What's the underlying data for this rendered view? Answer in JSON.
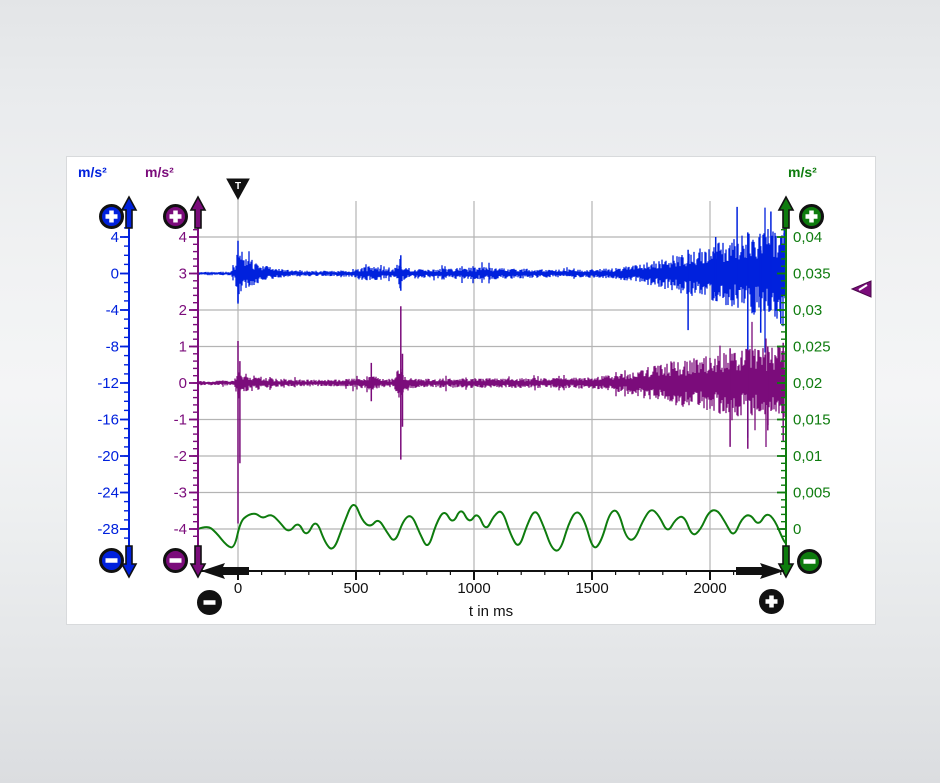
{
  "units": {
    "blue": "m/s²",
    "purple": "m/s²",
    "green": "m/s²"
  },
  "markers": {
    "trigger_label": "T",
    "trigger_time_ms": 0,
    "purple_level_marker": "left-triangle"
  },
  "controls": {
    "zoom_in_glyph": "+",
    "zoom_out_glyph": "−",
    "blue_axis": [
      "zoom-in",
      "scroll-up",
      "scroll-down",
      "zoom-out"
    ],
    "purple_axis": [
      "zoom-in",
      "scroll-up",
      "scroll-down",
      "zoom-out"
    ],
    "green_axis": [
      "zoom-in",
      "scroll-up",
      "scroll-down",
      "zoom-out"
    ],
    "time_axis": [
      "scroll-left",
      "scroll-right",
      "zoom-out",
      "zoom-in"
    ]
  },
  "colors": {
    "blue": "#0021dd",
    "purple": "#7b0c7b",
    "green": "#0e7c0e",
    "black": "#111111",
    "grid": "#b4b4b4",
    "panel": "#ffffff"
  },
  "chart_data": {
    "type": "line",
    "title": "",
    "x_axis": {
      "label": "t in ms",
      "tick_labels": [
        "0",
        "500",
        "1000",
        "1500",
        "2000"
      ],
      "tick_values": [
        0,
        500,
        1000,
        1500,
        2000
      ],
      "minor_step_ms": 100,
      "range": [
        -170,
        2322
      ]
    },
    "axes": {
      "blue": {
        "unit": "m/s²",
        "color": "#0021dd",
        "side": "left",
        "tick_labels": [
          "4",
          "0",
          "-4",
          "-8",
          "-12",
          "-16",
          "-20",
          "-24",
          "-28"
        ],
        "tick_values": [
          4,
          0,
          -4,
          -8,
          -12,
          -16,
          -20,
          -24,
          -28
        ]
      },
      "purple": {
        "unit": "m/s²",
        "color": "#7b0c7b",
        "side": "left",
        "tick_labels": [
          "4",
          "3",
          "2",
          "1",
          "0",
          "-1",
          "-2",
          "-3",
          "-4"
        ],
        "tick_values": [
          4,
          3,
          2,
          1,
          0,
          -1,
          -2,
          -3,
          -4
        ]
      },
      "green": {
        "unit": "m/s²",
        "color": "#0e7c0e",
        "side": "right",
        "tick_labels": [
          "0,04",
          "0,035",
          "0,03",
          "0,025",
          "0,02",
          "0,015",
          "0,01",
          "0,005",
          "0"
        ],
        "tick_values": [
          0.04,
          0.035,
          0.03,
          0.025,
          0.02,
          0.015,
          0.01,
          0.005,
          0
        ]
      }
    },
    "grid": {
      "color": "#b4b4b4",
      "horizontal_at_every_major": true,
      "vertical_at_every_major": true
    },
    "series": {
      "blue": {
        "name": "acceleration-trace-blue",
        "axis": "blue",
        "baseline": 0,
        "envelope": [
          [
            -170,
            0.18
          ],
          [
            -30,
            0.2
          ],
          [
            -12,
            0.9
          ],
          [
            0,
            3.3
          ],
          [
            25,
            2.0
          ],
          [
            60,
            1.5
          ],
          [
            110,
            0.9
          ],
          [
            170,
            0.5
          ],
          [
            250,
            0.32
          ],
          [
            430,
            0.3
          ],
          [
            480,
            0.45
          ],
          [
            540,
            0.85
          ],
          [
            580,
            0.75
          ],
          [
            620,
            0.55
          ],
          [
            655,
            0.5
          ],
          [
            678,
            1.1
          ],
          [
            690,
            1.9
          ],
          [
            700,
            0.8
          ],
          [
            730,
            0.45
          ],
          [
            820,
            0.5
          ],
          [
            950,
            0.65
          ],
          [
            1050,
            0.7
          ],
          [
            1150,
            0.6
          ],
          [
            1300,
            0.45
          ],
          [
            1450,
            0.42
          ],
          [
            1600,
            0.6
          ],
          [
            1700,
            1.0
          ],
          [
            1800,
            1.7
          ],
          [
            1900,
            2.4
          ],
          [
            2000,
            3.1
          ],
          [
            2100,
            3.9
          ],
          [
            2200,
            4.7
          ],
          [
            2330,
            5.3
          ]
        ],
        "spikes": [
          [
            0,
            -3.3,
            3.6
          ],
          [
            690,
            -1.9,
            2.0
          ],
          [
            1907,
            -6.2,
            2.6
          ],
          [
            2024,
            -2.5,
            4.0
          ],
          [
            2115,
            -2.5,
            7.3
          ],
          [
            2160,
            -18.0,
            4.5
          ],
          [
            2215,
            -6.5,
            3.0
          ],
          [
            2258,
            -4.0,
            6.8
          ],
          [
            2300,
            -5.5,
            4.0
          ],
          [
            2315,
            -2.0,
            7.2
          ]
        ]
      },
      "purple": {
        "name": "acceleration-trace-purple",
        "axis": "purple",
        "baseline": 0,
        "envelope": [
          [
            -170,
            0.06
          ],
          [
            -15,
            0.07
          ],
          [
            0,
            0.45
          ],
          [
            20,
            0.3
          ],
          [
            60,
            0.22
          ],
          [
            120,
            0.14
          ],
          [
            200,
            0.1
          ],
          [
            400,
            0.09
          ],
          [
            480,
            0.12
          ],
          [
            540,
            0.16
          ],
          [
            575,
            0.2
          ],
          [
            610,
            0.12
          ],
          [
            660,
            0.12
          ],
          [
            685,
            0.5
          ],
          [
            700,
            0.25
          ],
          [
            760,
            0.12
          ],
          [
            900,
            0.13
          ],
          [
            1100,
            0.14
          ],
          [
            1300,
            0.13
          ],
          [
            1500,
            0.16
          ],
          [
            1620,
            0.25
          ],
          [
            1720,
            0.42
          ],
          [
            1820,
            0.58
          ],
          [
            1920,
            0.7
          ],
          [
            2020,
            0.8
          ],
          [
            2120,
            0.92
          ],
          [
            2220,
            1.0
          ],
          [
            2330,
            1.05
          ]
        ],
        "spikes": [
          [
            0,
            -3.85,
            1.15
          ],
          [
            8,
            -2.2,
            0.6
          ],
          [
            565,
            -0.5,
            0.55
          ],
          [
            690,
            -2.1,
            2.1
          ],
          [
            697,
            -1.2,
            0.8
          ],
          [
            2085,
            -1.75,
            0.95
          ],
          [
            2160,
            -1.8,
            0.9
          ],
          [
            2245,
            -1.3,
            1.0
          ],
          [
            2310,
            -1.6,
            1.1
          ]
        ]
      },
      "green": {
        "name": "acceleration-trace-green",
        "axis": "green",
        "points": [
          [
            -170,
            0.0
          ],
          [
            -130,
            0.0005
          ],
          [
            -95,
            -0.0004
          ],
          [
            -45,
            -0.0024
          ],
          [
            -15,
            -0.0026
          ],
          [
            10,
            0.001
          ],
          [
            40,
            0.0019
          ],
          [
            75,
            0.0022
          ],
          [
            105,
            0.0014
          ],
          [
            140,
            0.0021
          ],
          [
            175,
            0.001
          ],
          [
            215,
            -0.0006
          ],
          [
            255,
            0.0011
          ],
          [
            290,
            -0.0012
          ],
          [
            330,
            0.0015
          ],
          [
            370,
            -0.002
          ],
          [
            405,
            -0.0031
          ],
          [
            445,
            0.0005
          ],
          [
            490,
            0.0041
          ],
          [
            525,
            0.0012
          ],
          [
            560,
            0.0002
          ],
          [
            595,
            0.0015
          ],
          [
            630,
            -0.0004
          ],
          [
            665,
            -0.002
          ],
          [
            700,
            0.0012
          ],
          [
            735,
            0.0021
          ],
          [
            770,
            -0.0006
          ],
          [
            805,
            -0.0029
          ],
          [
            840,
            0.0008
          ],
          [
            875,
            0.0027
          ],
          [
            910,
            0.0006
          ],
          [
            945,
            0.003
          ],
          [
            980,
            0.0007
          ],
          [
            1015,
            0.0024
          ],
          [
            1050,
            -0.0004
          ],
          [
            1085,
            0.0019
          ],
          [
            1120,
            0.0027
          ],
          [
            1155,
            -0.0008
          ],
          [
            1190,
            -0.0028
          ],
          [
            1225,
            0.0006
          ],
          [
            1260,
            0.0029
          ],
          [
            1295,
            0.0004
          ],
          [
            1330,
            -0.0028
          ],
          [
            1365,
            -0.0031
          ],
          [
            1400,
            0.0007
          ],
          [
            1435,
            0.0027
          ],
          [
            1470,
            0.0011
          ],
          [
            1505,
            -0.003
          ],
          [
            1540,
            -0.0017
          ],
          [
            1575,
            0.0023
          ],
          [
            1610,
            0.0027
          ],
          [
            1645,
            -0.0013
          ],
          [
            1680,
            -0.0016
          ],
          [
            1715,
            0.0011
          ],
          [
            1750,
            0.0029
          ],
          [
            1785,
            0.0018
          ],
          [
            1820,
            -0.0006
          ],
          [
            1855,
            0.0014
          ],
          [
            1890,
            0.0019
          ],
          [
            1925,
            -0.0011
          ],
          [
            1960,
            -0.0001
          ],
          [
            1995,
            0.0024
          ],
          [
            2030,
            0.0027
          ],
          [
            2065,
            0.0009
          ],
          [
            2100,
            -0.0012
          ],
          [
            2135,
            0.0015
          ],
          [
            2170,
            0.0021
          ],
          [
            2205,
            0.0004
          ],
          [
            2240,
            0.0023
          ],
          [
            2275,
            0.0012
          ],
          [
            2310,
            -0.0015
          ],
          [
            2322,
            -0.002
          ]
        ]
      }
    }
  }
}
